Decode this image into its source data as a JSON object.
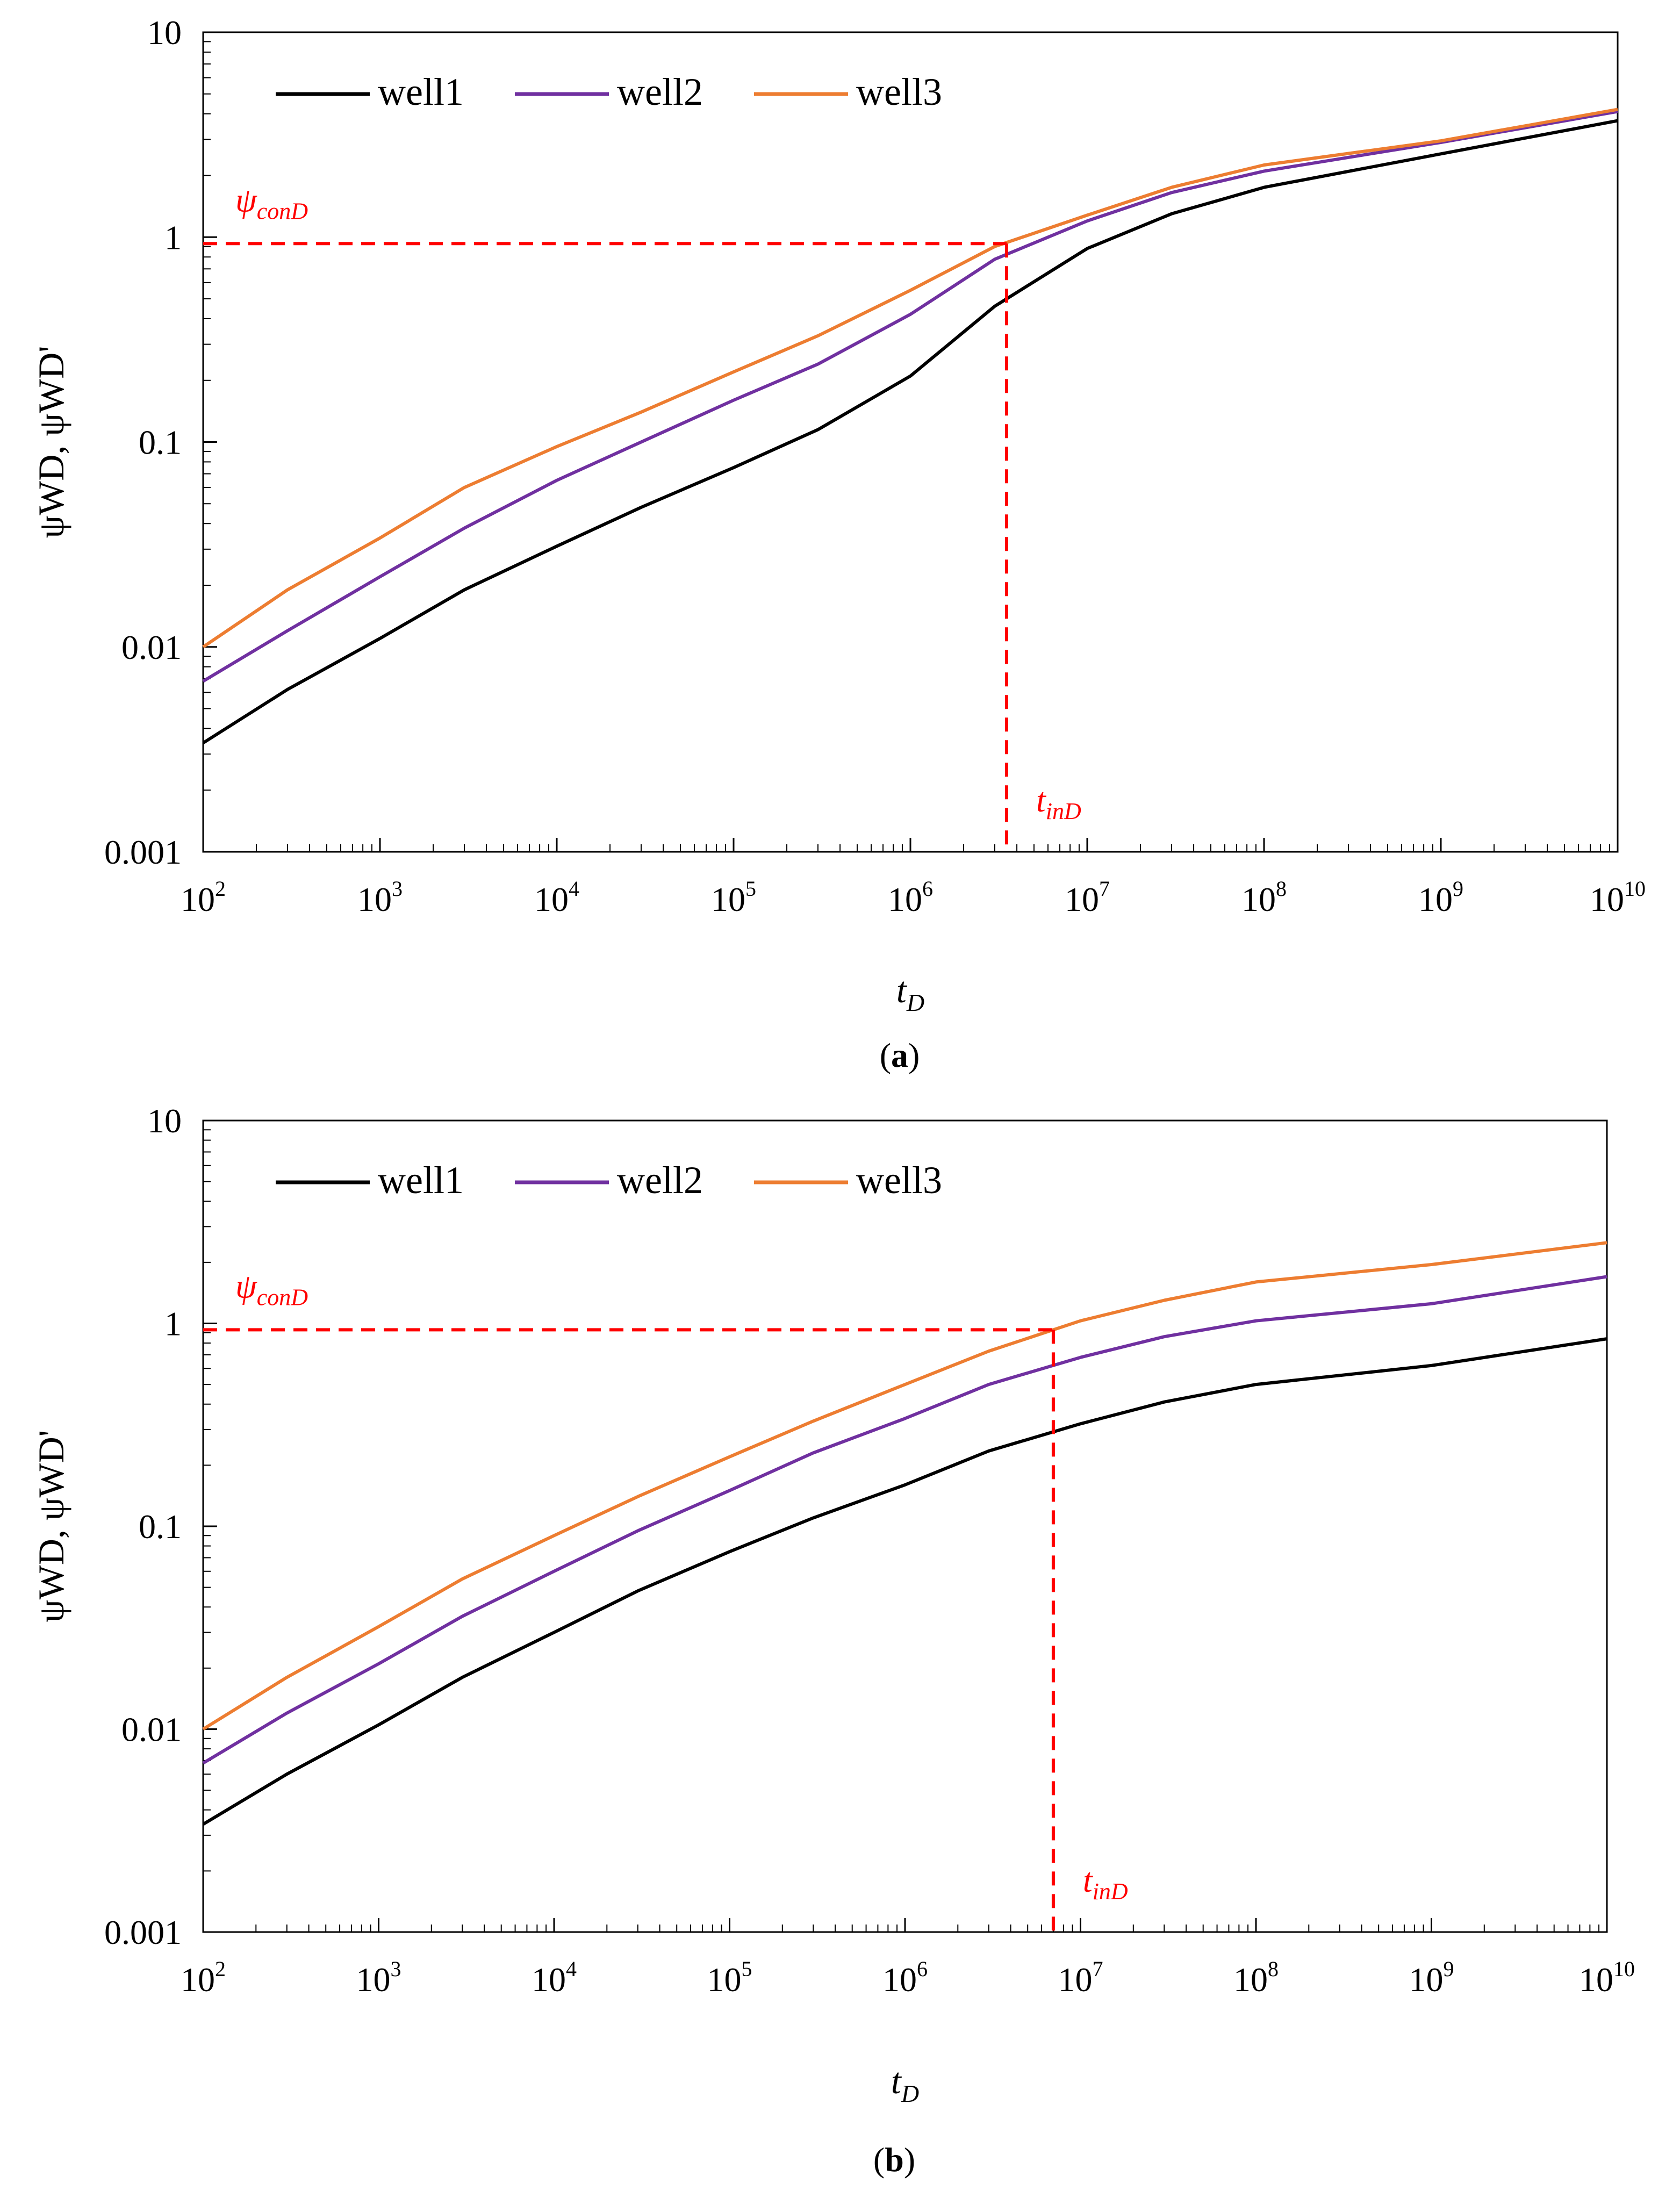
{
  "chart_data": [
    {
      "type": "line",
      "panel_label": "a",
      "xscale": "log",
      "yscale": "log",
      "xlim": [
        100,
        10000000000
      ],
      "ylim": [
        0.001,
        10
      ],
      "xlabel": "t",
      "xlabel_sub": "D",
      "ylabel": "ψWD, ψWD'",
      "x_ticks": [
        {
          "base": "10",
          "exp": "2",
          "value": 100
        },
        {
          "base": "10",
          "exp": "3",
          "value": 1000
        },
        {
          "base": "10",
          "exp": "4",
          "value": 10000
        },
        {
          "base": "10",
          "exp": "5",
          "value": 100000
        },
        {
          "base": "10",
          "exp": "6",
          "value": 1000000
        },
        {
          "base": "10",
          "exp": "7",
          "value": 10000000
        },
        {
          "base": "10",
          "exp": "8",
          "value": 100000000
        },
        {
          "base": "10",
          "exp": "9",
          "value": 1000000000
        },
        {
          "base": "10",
          "exp": "10",
          "value": 10000000000
        }
      ],
      "y_ticks": [
        {
          "label": "0.001",
          "value": 0.001
        },
        {
          "label": "0.01",
          "value": 0.01
        },
        {
          "label": "0.1",
          "value": 0.1
        },
        {
          "label": "1",
          "value": 1
        },
        {
          "label": "10",
          "value": 10
        }
      ],
      "legend_position": "top-left",
      "series": [
        {
          "name": "well1",
          "color": "#000000",
          "x": [
            100,
            300,
            1000,
            3000,
            10000,
            30000,
            100000,
            300000,
            1000000,
            3000000,
            10000000,
            30000000,
            100000000,
            1000000000,
            10000000000
          ],
          "values": [
            0.0034,
            0.0062,
            0.011,
            0.019,
            0.031,
            0.048,
            0.075,
            0.115,
            0.21,
            0.46,
            0.88,
            1.3,
            1.75,
            2.55,
            3.7
          ]
        },
        {
          "name": "well2",
          "color": "#7030a0",
          "x": [
            100,
            300,
            1000,
            3000,
            10000,
            30000,
            100000,
            300000,
            1000000,
            3000000,
            10000000,
            30000000,
            100000000,
            1000000000,
            10000000000
          ],
          "values": [
            0.0068,
            0.012,
            0.022,
            0.038,
            0.065,
            0.1,
            0.16,
            0.24,
            0.42,
            0.78,
            1.2,
            1.65,
            2.1,
            2.9,
            4.1
          ]
        },
        {
          "name": "well3",
          "color": "#ed7d31",
          "x": [
            100,
            300,
            1000,
            3000,
            10000,
            30000,
            100000,
            300000,
            1000000,
            3000000,
            10000000,
            30000000,
            100000000,
            1000000000,
            10000000000
          ],
          "values": [
            0.01,
            0.019,
            0.034,
            0.06,
            0.095,
            0.14,
            0.22,
            0.33,
            0.55,
            0.9,
            1.28,
            1.75,
            2.25,
            2.95,
            4.2
          ]
        }
      ],
      "annotations": {
        "psi_base": "ψ",
        "psi_sub": "conD",
        "psi_value": 0.93,
        "t_base": "t",
        "t_sub": "inD",
        "t_value": 3500000
      }
    },
    {
      "type": "line",
      "panel_label": "b",
      "xscale": "log",
      "yscale": "log",
      "xlim": [
        100,
        10000000000
      ],
      "ylim": [
        0.001,
        10
      ],
      "xlabel": "t",
      "xlabel_sub": "D",
      "ylabel": "ψWD, ψWD'",
      "x_ticks": [
        {
          "base": "10",
          "exp": "2",
          "value": 100
        },
        {
          "base": "10",
          "exp": "3",
          "value": 1000
        },
        {
          "base": "10",
          "exp": "4",
          "value": 10000
        },
        {
          "base": "10",
          "exp": "5",
          "value": 100000
        },
        {
          "base": "10",
          "exp": "6",
          "value": 1000000
        },
        {
          "base": "10",
          "exp": "7",
          "value": 10000000
        },
        {
          "base": "10",
          "exp": "8",
          "value": 100000000
        },
        {
          "base": "10",
          "exp": "9",
          "value": 1000000000
        },
        {
          "base": "10",
          "exp": "10",
          "value": 10000000000
        }
      ],
      "y_ticks": [
        {
          "label": "0.001",
          "value": 0.001
        },
        {
          "label": "0.01",
          "value": 0.01
        },
        {
          "label": "0.1",
          "value": 0.1
        },
        {
          "label": "1",
          "value": 1
        },
        {
          "label": "10",
          "value": 10
        }
      ],
      "legend_position": "top-left",
      "series": [
        {
          "name": "well1",
          "color": "#000000",
          "x": [
            100,
            300,
            1000,
            3000,
            10000,
            30000,
            100000,
            300000,
            1000000,
            3000000,
            10000000,
            30000000,
            100000000,
            1000000000,
            10000000000
          ],
          "values": [
            0.0034,
            0.006,
            0.0105,
            0.018,
            0.03,
            0.048,
            0.075,
            0.11,
            0.16,
            0.235,
            0.32,
            0.41,
            0.5,
            0.62,
            0.84
          ]
        },
        {
          "name": "well2",
          "color": "#7030a0",
          "x": [
            100,
            300,
            1000,
            3000,
            10000,
            30000,
            100000,
            300000,
            1000000,
            3000000,
            10000000,
            30000000,
            100000000,
            1000000000,
            10000000000
          ],
          "values": [
            0.0068,
            0.012,
            0.021,
            0.036,
            0.06,
            0.095,
            0.15,
            0.23,
            0.34,
            0.5,
            0.68,
            0.86,
            1.03,
            1.25,
            1.7
          ]
        },
        {
          "name": "well3",
          "color": "#ed7d31",
          "x": [
            100,
            300,
            1000,
            3000,
            10000,
            30000,
            100000,
            300000,
            1000000,
            3000000,
            10000000,
            30000000,
            100000000,
            1000000000,
            10000000000
          ],
          "values": [
            0.01,
            0.018,
            0.032,
            0.055,
            0.09,
            0.14,
            0.22,
            0.33,
            0.5,
            0.73,
            1.03,
            1.3,
            1.6,
            1.95,
            2.5
          ]
        }
      ],
      "annotations": {
        "psi_base": "ψ",
        "psi_sub": "conD",
        "psi_value": 0.93,
        "t_base": "t",
        "t_sub": "inD",
        "t_value": 7000000
      }
    }
  ],
  "captions": [
    {
      "open": "(",
      "letter": "a",
      "close": ")"
    },
    {
      "open": "(",
      "letter": "b",
      "close": ")"
    }
  ]
}
